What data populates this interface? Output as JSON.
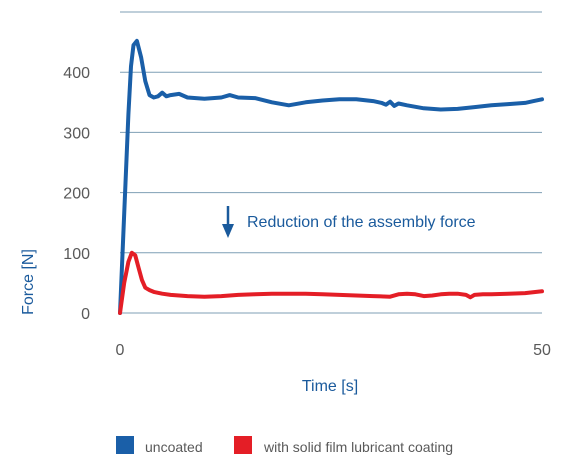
{
  "chart_data": {
    "type": "line",
    "title": "",
    "xlabel": "Time [s]",
    "ylabel": "Force [N]",
    "xlim": [
      0,
      50
    ],
    "ylim": [
      0,
      500
    ],
    "x_ticks": [
      0,
      50
    ],
    "y_ticks": [
      0,
      100,
      200,
      300,
      400
    ],
    "grid": "horizontal",
    "legend": "bottom",
    "annotation": "Reduction of the assembly force",
    "series": [
      {
        "name": "uncoated",
        "color": "#1a5fa8",
        "x": [
          0,
          1,
          1.3,
          1.6,
          2,
          2.5,
          3,
          3.5,
          4,
          4.5,
          5,
          5.5,
          6,
          7,
          8,
          10,
          12,
          13,
          14,
          16,
          18,
          20,
          22,
          24,
          26,
          28,
          30,
          31,
          31.5,
          32,
          32.5,
          33,
          34,
          36,
          38,
          40,
          42,
          44,
          46,
          48,
          49,
          50
        ],
        "y": [
          0,
          330,
          410,
          445,
          452,
          425,
          385,
          362,
          358,
          360,
          366,
          360,
          362,
          364,
          358,
          356,
          358,
          362,
          358,
          357,
          350,
          345,
          350,
          353,
          355,
          355,
          352,
          349,
          346,
          351,
          344,
          348,
          345,
          340,
          338,
          339,
          342,
          345,
          347,
          349,
          352,
          355
        ]
      },
      {
        "name": "with solid film lubricant coating",
        "color": "#e41e26",
        "x": [
          0,
          0.5,
          1,
          1.4,
          1.8,
          2.2,
          2.6,
          3,
          3.5,
          4,
          5,
          6,
          8,
          10,
          12,
          14,
          16,
          18,
          20,
          22,
          24,
          26,
          28,
          30,
          32,
          33,
          34,
          35,
          36,
          37,
          38,
          39,
          40,
          41,
          41.5,
          42,
          43,
          44,
          46,
          48,
          50
        ],
        "y": [
          0,
          50,
          85,
          100,
          96,
          75,
          55,
          42,
          38,
          35,
          32,
          30,
          28,
          27,
          28,
          30,
          31,
          32,
          32,
          32,
          31,
          30,
          29,
          28,
          27,
          31,
          32,
          31,
          28,
          29,
          31,
          32,
          32,
          30,
          26,
          30,
          31,
          31,
          32,
          33,
          36
        ]
      }
    ]
  }
}
